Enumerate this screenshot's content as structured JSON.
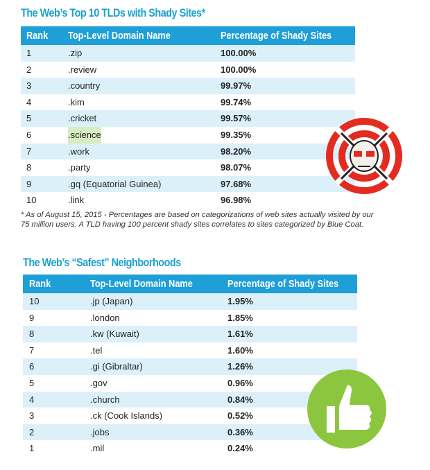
{
  "tables": [
    {
      "title": "The Web’s Top 10 TLDs with Shady Sites*",
      "header": [
        "Rank",
        "Top-Level Domain Name",
        "Percentage of Shady Sites"
      ],
      "rows": [
        [
          "1",
          ".zip",
          "100.00%"
        ],
        [
          "2",
          ".review",
          "100.00%"
        ],
        [
          "3",
          ".country",
          "99.97%"
        ],
        [
          "4",
          ".kim",
          "99.74%"
        ],
        [
          "5",
          ".cricket",
          "99.57%"
        ],
        [
          "6",
          ".science",
          "99.35%"
        ],
        [
          "7",
          ".work",
          "98.20%"
        ],
        [
          "8",
          ".party",
          "98.07%"
        ],
        [
          "9",
          ".gq (Equatorial Guinea)",
          "97.68%"
        ],
        [
          "10",
          ".link",
          "96.98%"
        ]
      ],
      "footnote": "* As of August 15, 2015 - Percentages are based on categorizations of web sites actually visited by our 75 million users. A TLD having 100 percent shady sites correlates to sites categorized by Blue Coat."
    },
    {
      "title": "The Web’s “Safest” Neighborhoods",
      "header": [
        "Rank",
        "Top-Level Domain Name",
        "Percentage of Shady Sites"
      ],
      "rows": [
        [
          "10",
          ".jp (Japan)",
          "1.95%"
        ],
        [
          "9",
          ".london",
          "1.85%"
        ],
        [
          "8",
          ".kw (Kuwait)",
          "1.61%"
        ],
        [
          "7",
          ".tel",
          "1.60%"
        ],
        [
          "6",
          ".gi (Gibraltar)",
          "1.26%"
        ],
        [
          "5",
          ".gov",
          "0.96%"
        ],
        [
          "4",
          ".church",
          "0.84%"
        ],
        [
          "3",
          ".ck (Cook Islands)",
          "0.52%"
        ],
        [
          "2",
          ".jobs",
          "0.36%"
        ],
        [
          "1",
          ".mil",
          "0.24%"
        ]
      ]
    }
  ]
}
